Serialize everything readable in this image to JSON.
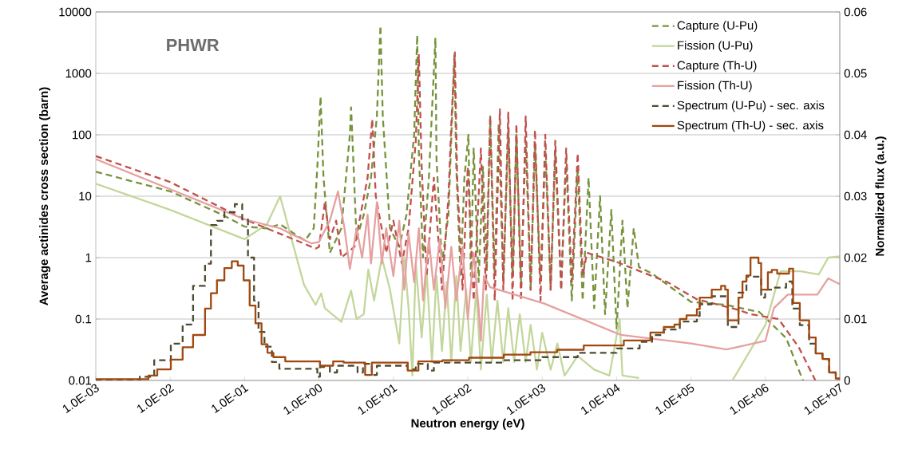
{
  "chart_data": {
    "type": "line",
    "title": "PHWR",
    "xlabel": "Neutron energy (eV)",
    "ylabel": "Average actinides cross section (barn)",
    "y2label": "Normalized flux (a.u.)",
    "log": "xy",
    "grid": "y",
    "legend": "top right",
    "xlim": [
      0.001,
      10000000
    ],
    "ylim": [
      0.01,
      10000
    ],
    "y2lim": [
      0,
      0.06
    ],
    "xticks": [
      {
        "value": 0.001,
        "label": "1.0E-03"
      },
      {
        "value": 0.01,
        "label": "1.0E-02"
      },
      {
        "value": 0.1,
        "label": "1.0E-01"
      },
      {
        "value": 1,
        "label": "1.0E+00"
      },
      {
        "value": 10,
        "label": "1.0E+01"
      },
      {
        "value": 100,
        "label": "1.0E+02"
      },
      {
        "value": 1000,
        "label": "1.0E+03"
      },
      {
        "value": 10000,
        "label": "1.0E+04"
      },
      {
        "value": 100000,
        "label": "1.0E+05"
      },
      {
        "value": 1000000,
        "label": "1.0E+06"
      },
      {
        "value": 10000000,
        "label": "1.0E+07"
      }
    ],
    "yticks": [
      0.01,
      0.1,
      1,
      10,
      100,
      1000,
      10000
    ],
    "y2ticks": [
      0,
      0.01,
      0.02,
      0.03,
      0.04,
      0.05,
      0.06
    ],
    "series": [
      {
        "name": "Capture (U-Pu)",
        "color": "#77933c",
        "line_style": "dashed",
        "x": [
          0.001,
          0.01,
          0.05,
          0.1,
          0.2,
          0.3,
          0.5,
          0.65,
          0.85,
          0.95,
          1.05,
          1.15,
          1.4,
          2,
          2.6,
          2.7,
          2.8,
          3.2,
          4,
          5,
          6,
          6.7,
          7.2,
          9,
          12,
          15,
          19,
          20.9,
          22,
          25,
          30,
          36.7,
          38,
          45,
          55,
          66,
          70,
          80,
          90,
          102,
          110,
          120,
          140,
          160,
          180,
          200,
          230,
          260,
          300,
          350,
          400,
          450,
          520,
          600,
          700,
          800,
          950,
          1100,
          1300,
          1500,
          1800,
          2100,
          2500,
          3000,
          3500,
          4200,
          5000,
          6000,
          7000,
          8500,
          10000,
          12000,
          14000,
          17000,
          20000,
          30000,
          50000,
          100000,
          300000,
          830000,
          1900000,
          3200000
        ],
        "values": [
          25,
          12,
          5,
          3.2,
          3,
          3.5,
          2.3,
          1.9,
          3,
          30,
          420,
          20,
          1.2,
          3,
          100,
          280,
          100,
          2,
          5,
          20,
          200,
          6000,
          200,
          3,
          1.5,
          5,
          100,
          4200,
          50,
          1,
          20,
          3800,
          40,
          0.8,
          5,
          2000,
          30,
          0.5,
          20,
          100,
          0.5,
          60,
          0.4,
          30,
          0.6,
          200,
          0.5,
          150,
          0.4,
          120,
          0.5,
          100,
          0.4,
          80,
          0.3,
          70,
          0.4,
          60,
          0.3,
          50,
          0.3,
          40,
          0.2,
          30,
          0.2,
          20,
          0.15,
          10,
          0.12,
          6,
          0.07,
          4,
          0.15,
          3,
          0.7,
          0.55,
          0.35,
          0.19,
          0.17,
          0.13,
          0.049,
          0.01
        ]
      },
      {
        "name": "Fission (U-Pu)",
        "color": "#c3d69b",
        "line_style": "solid",
        "x": [
          0.001,
          0.01,
          0.1,
          0.2,
          0.3,
          0.5,
          0.63,
          0.9,
          1.07,
          1.2,
          2,
          2.7,
          3.2,
          4,
          4.6,
          5.5,
          7,
          9,
          12,
          14,
          16,
          18,
          20,
          24,
          28,
          33,
          38,
          45,
          52,
          60,
          70,
          80,
          95,
          110,
          130,
          150,
          180,
          210,
          250,
          300,
          350,
          420,
          500,
          600,
          700,
          850,
          1000,
          1300,
          1600,
          2000,
          3000,
          5000,
          8000,
          11000,
          12000,
          20000,
          100000,
          360000,
          1000000,
          1600000,
          2000000,
          3000000,
          5200000,
          7000000,
          10000000
        ],
        "values": [
          16,
          6,
          2,
          3.5,
          10,
          1,
          0.36,
          0.17,
          0.26,
          0.15,
          0.09,
          0.29,
          0.1,
          0.12,
          0.64,
          0.2,
          1,
          0.3,
          0.04,
          1,
          0.15,
          0.012,
          0.8,
          0.05,
          0.6,
          0.02,
          0.5,
          0.03,
          0.4,
          0.02,
          0.5,
          0.03,
          0.3,
          0.02,
          0.3,
          0.015,
          0.25,
          0.02,
          0.2,
          0.02,
          0.15,
          0.02,
          0.12,
          0.02,
          0.08,
          0.015,
          0.06,
          0.015,
          0.04,
          0.012,
          0.025,
          0.015,
          0.012,
          0.1,
          0.012,
          0.011,
          null,
          0.01,
          0.08,
          0.6,
          0.6,
          0.6,
          0.53,
          1,
          1.05
        ]
      },
      {
        "name": "Capture (Th-U)",
        "color": "#c0504d",
        "line_style": "dashed",
        "x": [
          0.001,
          0.01,
          0.1,
          0.5,
          0.9,
          1,
          1.2,
          1.4,
          1.7,
          2,
          3,
          4.5,
          5.2,
          5.8,
          8,
          10,
          13,
          16,
          20,
          22,
          24,
          28,
          35,
          45,
          55,
          60,
          67,
          72,
          85,
          100,
          120,
          150,
          175,
          200,
          230,
          270,
          300,
          350,
          400,
          450,
          520,
          600,
          700,
          800,
          950,
          1100,
          1300,
          1500,
          1800,
          2100,
          2500,
          3000,
          3500,
          4000,
          10000,
          48000,
          120000,
          440000,
          630000,
          1500000,
          2800000,
          4700000
        ],
        "values": [
          45,
          17,
          4.2,
          1.9,
          1.4,
          1.5,
          8,
          2,
          4,
          1,
          1.5,
          20,
          180,
          10,
          1.2,
          4,
          0.8,
          3,
          80,
          2000,
          30,
          0.5,
          20,
          0.3,
          10,
          150,
          2200,
          20,
          0.3,
          30,
          0.2,
          60,
          0.3,
          200,
          0.2,
          260,
          0.3,
          230,
          0.2,
          150,
          0.2,
          200,
          0.3,
          120,
          0.2,
          100,
          0.3,
          80,
          0.3,
          60,
          0.4,
          50,
          0.5,
          1.2,
          0.85,
          0.4,
          0.21,
          0.14,
          0.12,
          0.1,
          0.035,
          0.01
        ]
      },
      {
        "name": "Fission (Th-U)",
        "color": "#e6a0a0",
        "line_style": "solid",
        "x": [
          0.001,
          0.01,
          0.1,
          0.3,
          0.5,
          0.8,
          1,
          1.4,
          1.8,
          2.2,
          2.6,
          3.2,
          3.8,
          4.5,
          5,
          6,
          7,
          8,
          10,
          12,
          14,
          16,
          19,
          22,
          25,
          30,
          35,
          42,
          50,
          60,
          70,
          85,
          100,
          120,
          140,
          150,
          165,
          200,
          1050,
          11500,
          100000,
          300000,
          1000000,
          1300000,
          2000000,
          5000000,
          7000000,
          10000000
        ],
        "values": [
          40,
          13,
          4.2,
          3,
          2.2,
          1.7,
          1.8,
          4,
          12,
          3,
          0.65,
          3,
          1,
          5,
          0.8,
          8,
          0.8,
          3,
          0.5,
          4,
          0.3,
          2.5,
          0.4,
          3,
          0.2,
          2,
          0.3,
          2,
          0.15,
          1.5,
          0.2,
          1.5,
          0.1,
          1.2,
          0.15,
          0.044,
          0.5,
          0.33,
          0.18,
          0.055,
          0.04,
          0.032,
          0.044,
          0.15,
          0.25,
          0.25,
          0.46,
          0.37
        ]
      },
      {
        "name": "Spectrum (U-Pu) - sec. axis",
        "type": "step",
        "axis": "y2",
        "color": "#4f4b31",
        "line_style": "dashed",
        "x": [
          0.001,
          0.0039,
          0.0061,
          0.0102,
          0.0147,
          0.0203,
          0.0294,
          0.0353,
          0.0425,
          0.0535,
          0.0738,
          0.0929,
          0.111,
          0.134,
          0.154,
          0.185,
          0.233,
          0.293,
          0.95,
          1.03,
          1.4,
          1.75,
          3.3,
          3.9,
          5.13,
          6,
          15.6,
          20,
          29,
          35,
          300,
          1000,
          3000,
          10000,
          20400,
          30000,
          43100,
          70800,
          120000,
          131000,
          190000,
          288000,
          313000,
          435000,
          556000,
          877000,
          993000,
          1300000,
          1900000,
          2300000,
          2900000,
          3870000,
          4750000,
          5850000,
          7190000,
          8830000,
          10000000
        ],
        "values": [
          0.0001,
          0.0006,
          0.0033,
          0.006,
          0.0091,
          0.0154,
          0.019,
          0.0253,
          0.026,
          0.0274,
          0.0287,
          0.0262,
          0.02,
          0.013,
          0.0079,
          0.0055,
          0.003,
          0.0019,
          0.0006,
          0.0022,
          0.0013,
          0.0024,
          0.0013,
          0.0027,
          0.0009,
          0.0024,
          0.0018,
          0.0027,
          0.0016,
          0.0029,
          0.0033,
          0.0038,
          0.0045,
          0.0052,
          0.0063,
          0.0074,
          0.0083,
          0.0096,
          0.0105,
          0.0124,
          0.0137,
          0.0137,
          0.0087,
          0.0143,
          0.0169,
          0.0135,
          0.0148,
          0.0151,
          0.0161,
          0.0117,
          0.009,
          0.006,
          0.0044,
          0.0035,
          0.0013,
          0.0003,
          0.0003
        ]
      },
      {
        "name": "Spectrum (Th-U) - sec. axis",
        "type": "step",
        "axis": "y2",
        "color": "#a0480f",
        "line_style": "solid",
        "x": [
          0.001,
          0.0051,
          0.0067,
          0.0102,
          0.0147,
          0.0203,
          0.0294,
          0.0353,
          0.0425,
          0.0535,
          0.0673,
          0.0809,
          0.097,
          0.117,
          0.14,
          0.169,
          0.203,
          0.244,
          0.352,
          1.03,
          1.55,
          2.15,
          4.17,
          5.13,
          15.6,
          21.7,
          45.7,
          104,
          305,
          695,
          1590,
          3620,
          12500,
          28500,
          43100,
          60000,
          70800,
          87100,
          120000,
          131000,
          190000,
          254000,
          288000,
          313000,
          435000,
          492000,
          556000,
          631000,
          807000,
          877000,
          1080000,
          1220000,
          1440000,
          2080000,
          2360000,
          2900000,
          3870000,
          4750000,
          5850000,
          7190000,
          8830000,
          10000000
        ],
        "values": [
          0.0002,
          0.0008,
          0.0018,
          0.0034,
          0.0054,
          0.0074,
          0.0117,
          0.0142,
          0.0163,
          0.0183,
          0.0194,
          0.0187,
          0.0163,
          0.0122,
          0.0093,
          0.0059,
          0.0045,
          0.0038,
          0.0031,
          0.0024,
          0.0031,
          0.0029,
          0.0009,
          0.0029,
          0.0016,
          0.0031,
          0.0033,
          0.0037,
          0.0042,
          0.0046,
          0.005,
          0.0057,
          0.0065,
          0.0078,
          0.0087,
          0.0091,
          0.01,
          0.0106,
          0.0116,
          0.0135,
          0.0148,
          0.0154,
          0.0148,
          0.0098,
          0.0135,
          0.0161,
          0.0171,
          0.02,
          0.0191,
          0.0148,
          0.0176,
          0.018,
          0.0174,
          0.0182,
          0.0126,
          0.0098,
          0.007,
          0.0044,
          0.0035,
          0.0013,
          0.0003,
          0.0003
        ]
      }
    ]
  }
}
